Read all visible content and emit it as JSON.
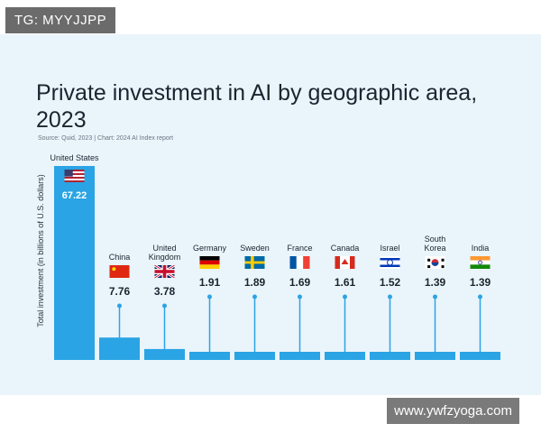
{
  "watermark_top": "TG: MYYJJPP",
  "watermark_bottom": "www.ywfzyoga.com",
  "chart_data": {
    "type": "bar",
    "title": "Private investment in AI by geographic area, 2023",
    "source": "Source: Quid, 2023 | Chart: 2024 AI Index report",
    "ylabel": "Total investment (in billions of U.S. dollars)",
    "xlabel": "",
    "ylim": [
      0,
      67.22
    ],
    "categories": [
      "United States",
      "China",
      "United Kingdom",
      "Germany",
      "Sweden",
      "France",
      "Canada",
      "Israel",
      "South Korea",
      "India"
    ],
    "category_lines": [
      [
        "United States"
      ],
      [
        "China"
      ],
      [
        "United",
        "Kingdom"
      ],
      [
        "Germany"
      ],
      [
        "Sweden"
      ],
      [
        "France"
      ],
      [
        "Canada"
      ],
      [
        "Israel"
      ],
      [
        "South",
        "Korea"
      ],
      [
        "India"
      ]
    ],
    "values": [
      67.22,
      7.76,
      3.78,
      1.91,
      1.89,
      1.69,
      1.61,
      1.52,
      1.39,
      1.39
    ],
    "value_labels": [
      "67.22",
      "7.76",
      "3.78",
      "1.91",
      "1.89",
      "1.69",
      "1.61",
      "1.52",
      "1.39",
      "1.39"
    ],
    "flags": [
      "us-flag",
      "cn-flag",
      "uk-flag",
      "de-flag",
      "se-flag",
      "fr-flag",
      "ca-flag",
      "il-flag",
      "kr-flag",
      "in-flag"
    ],
    "bar_color": "#2aa4e4",
    "label_color": "#1b2530"
  }
}
